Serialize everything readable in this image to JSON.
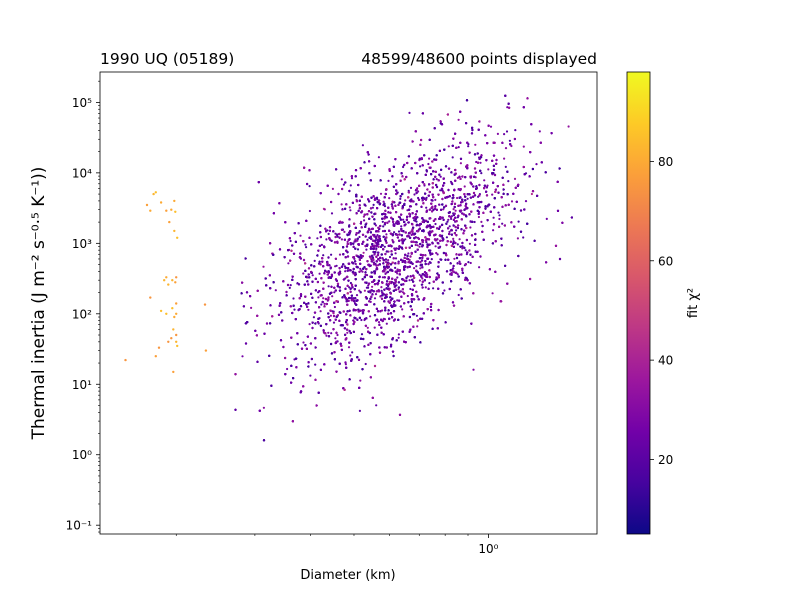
{
  "chart_data": {
    "type": "scatter",
    "title_left": "1990 UQ (05189)",
    "title_right": "48599/48600 points displayed",
    "xlabel": "Diameter (km)",
    "ylabel": "Thermal inertia (J m⁻² s⁻⁰·⁵ K⁻¹))",
    "x_scale": "log",
    "y_scale": "log",
    "xlim": [
      0.135,
      1.75
    ],
    "ylim": [
      0.075,
      270000
    ],
    "x_tick_labels": [
      {
        "value": 1,
        "label": "10⁰"
      }
    ],
    "x_minor_ticks": [
      0.2,
      0.3,
      0.4,
      0.5,
      0.6,
      0.7,
      0.8,
      0.9
    ],
    "y_tick_labels": [
      {
        "value": 0.1,
        "label": "10⁻¹"
      },
      {
        "value": 1,
        "label": "10⁰"
      },
      {
        "value": 10,
        "label": "10¹"
      },
      {
        "value": 100,
        "label": "10²"
      },
      {
        "value": 1000,
        "label": "10³"
      },
      {
        "value": 10000,
        "label": "10⁴"
      },
      {
        "value": 100000,
        "label": "10⁵"
      }
    ],
    "colorbar": {
      "label": "fit χ²",
      "colormap": "plasma",
      "range": [
        5,
        98
      ],
      "ticks": [
        {
          "value": 20,
          "label": "20"
        },
        {
          "value": 40,
          "label": "40"
        },
        {
          "value": 60,
          "label": "60"
        },
        {
          "value": 80,
          "label": "80"
        }
      ],
      "colors": [
        "#0d0887",
        "#46039f",
        "#7201a8",
        "#9c179e",
        "#bd3786",
        "#d8576b",
        "#ed7953",
        "#fb9f3a",
        "#fdca26",
        "#f0f921"
      ]
    },
    "main_cloud": {
      "point_count_approx": 48559,
      "center": {
        "diameter": 0.62,
        "thermal_inertia": 800
      },
      "diameter_range": [
        0.25,
        1.55
      ],
      "thermal_inertia_range": [
        0.15,
        130000
      ],
      "chi2_typical": [
        15,
        35
      ]
    },
    "outlier_series": {
      "chi2_typical": [
        75,
        85
      ],
      "points": [
        {
          "d": 0.154,
          "ti": 22
        },
        {
          "d": 0.172,
          "ti": 3500
        },
        {
          "d": 0.175,
          "ti": 2900
        },
        {
          "d": 0.178,
          "ti": 5000
        },
        {
          "d": 0.18,
          "ti": 5300
        },
        {
          "d": 0.175,
          "ti": 170
        },
        {
          "d": 0.18,
          "ti": 25
        },
        {
          "d": 0.185,
          "ti": 3800
        },
        {
          "d": 0.188,
          "ti": 300
        },
        {
          "d": 0.185,
          "ti": 110
        },
        {
          "d": 0.183,
          "ti": 33
        },
        {
          "d": 0.19,
          "ti": 2900
        },
        {
          "d": 0.19,
          "ti": 330
        },
        {
          "d": 0.192,
          "ti": 260
        },
        {
          "d": 0.19,
          "ti": 100
        },
        {
          "d": 0.192,
          "ti": 40
        },
        {
          "d": 0.193,
          "ti": 2000
        },
        {
          "d": 0.195,
          "ti": 3000
        },
        {
          "d": 0.196,
          "ti": 300
        },
        {
          "d": 0.196,
          "ti": 120
        },
        {
          "d": 0.195,
          "ti": 45
        },
        {
          "d": 0.197,
          "ti": 15
        },
        {
          "d": 0.198,
          "ti": 4000
        },
        {
          "d": 0.198,
          "ti": 1500
        },
        {
          "d": 0.199,
          "ti": 2800
        },
        {
          "d": 0.2,
          "ti": 330
        },
        {
          "d": 0.2,
          "ti": 140
        },
        {
          "d": 0.2,
          "ti": 100
        },
        {
          "d": 0.2,
          "ti": 40
        },
        {
          "d": 0.201,
          "ti": 35
        },
        {
          "d": 0.2,
          "ti": 50
        },
        {
          "d": 0.199,
          "ti": 280
        },
        {
          "d": 0.198,
          "ti": 90
        },
        {
          "d": 0.197,
          "ti": 60
        },
        {
          "d": 0.201,
          "ti": 1200
        },
        {
          "d": 0.232,
          "ti": 135
        },
        {
          "d": 0.233,
          "ti": 30
        }
      ]
    }
  }
}
